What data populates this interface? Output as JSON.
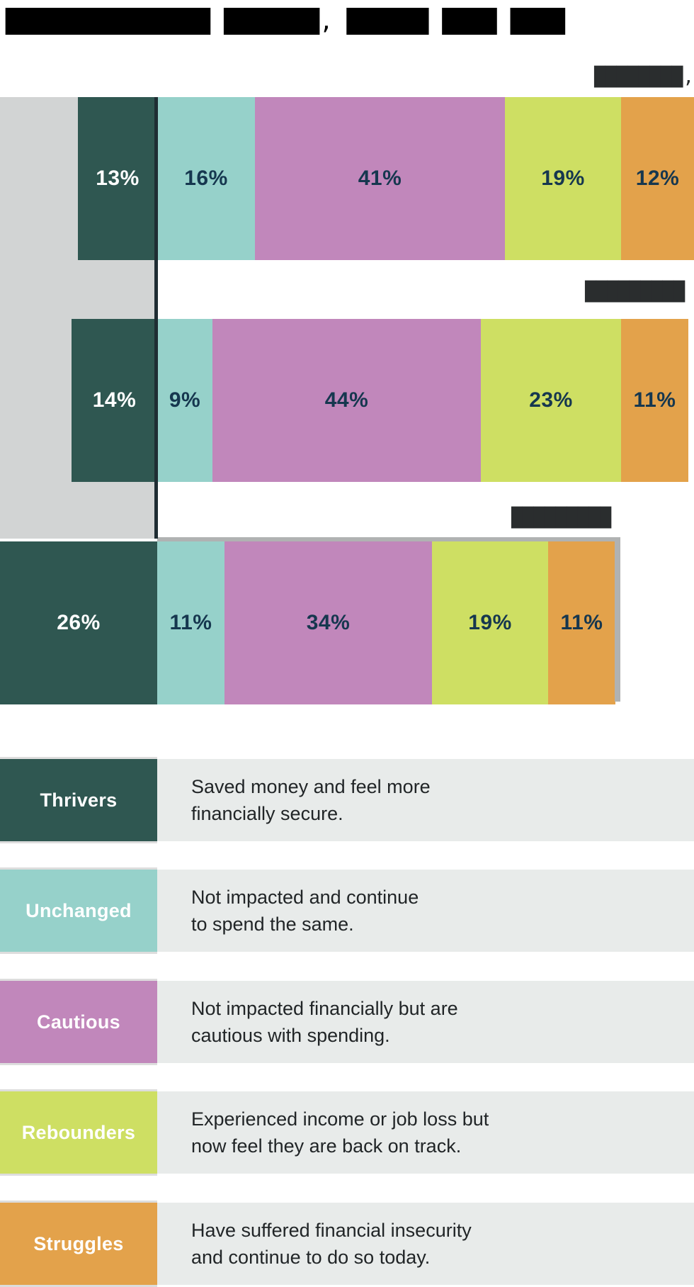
{
  "title": {
    "redacted_text": "███████████████ ███████, ██████ ████ ████"
  },
  "chart_data": {
    "type": "bar",
    "orientation": "horizontal",
    "diverging": true,
    "unit": "%",
    "categories": [
      "Thrivers",
      "Unchanged",
      "Cautious",
      "Rebounders",
      "Struggles"
    ],
    "series": [
      {
        "period_label_redacted": "████████,",
        "values": [
          13,
          16,
          41,
          19,
          12
        ]
      },
      {
        "period_label_redacted": "█████████",
        "values": [
          14,
          9,
          44,
          23,
          11
        ]
      },
      {
        "period_label_redacted": "█████████",
        "values": [
          26,
          11,
          34,
          19,
          11
        ]
      }
    ],
    "colors": {
      "Thrivers": "#2f5751",
      "Unchanged": "#96d1ca",
      "Cautious": "#c187bb",
      "Rebounders": "#cedf63",
      "Struggles": "#e3a24b"
    },
    "value_label_color_on_thrivers": "#ffffff",
    "value_label_color_on_others": "#16374f",
    "baseline": "Thrivers segment extends left of the vertical baseline; all other segments extend right"
  },
  "legend": {
    "items": [
      {
        "label": "Thrivers",
        "color": "#2f5751",
        "desc_lines": [
          "Saved money and feel more",
          "financially secure."
        ]
      },
      {
        "label": "Unchanged",
        "color": "#96d1ca",
        "desc_lines": [
          "Not impacted and continue",
          "to spend the same."
        ]
      },
      {
        "label": "Cautious",
        "color": "#c187bb",
        "desc_lines": [
          "Not impacted financially but are",
          "cautious with spending."
        ]
      },
      {
        "label": "Rebounders",
        "color": "#cedf63",
        "desc_lines": [
          "Experienced income or job loss but",
          "now feel they are back on track."
        ]
      },
      {
        "label": "Struggles",
        "color": "#e3a24b",
        "desc_lines": [
          "Have suffered financial insecurity",
          "and continue to do so today."
        ]
      }
    ]
  },
  "palette": {
    "title_black": "#000000",
    "redacted_dark": "#2a2d2e",
    "panel_gray": "#d2d4d4",
    "baseline_navy": "#1f2d33",
    "bar3_edge_gray": "#b0b2b2",
    "legend_row_bg": "#e8ebea",
    "desc_text": "#212527"
  }
}
